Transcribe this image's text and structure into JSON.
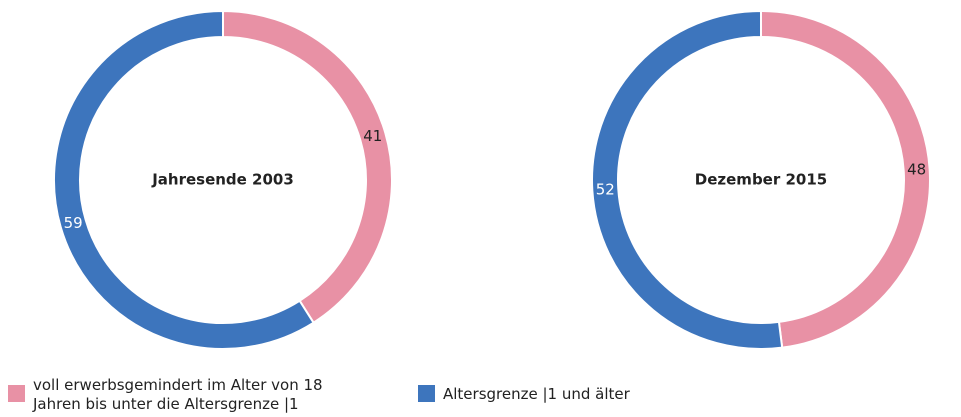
{
  "chart_data": [
    {
      "type": "pie",
      "title": "Jahresende 2003",
      "values": [
        41,
        59
      ]
    },
    {
      "type": "pie",
      "title": "Dezember 2015",
      "values": [
        48,
        52
      ]
    }
  ],
  "legend": [
    {
      "label": "voll erwerbsgemindert im Alter von 18 Jahren bis unter die Altersgrenze |1",
      "color": "#e891a5"
    },
    {
      "label": "Altersgrenze |1 und älter",
      "color": "#3d75bd"
    }
  ]
}
